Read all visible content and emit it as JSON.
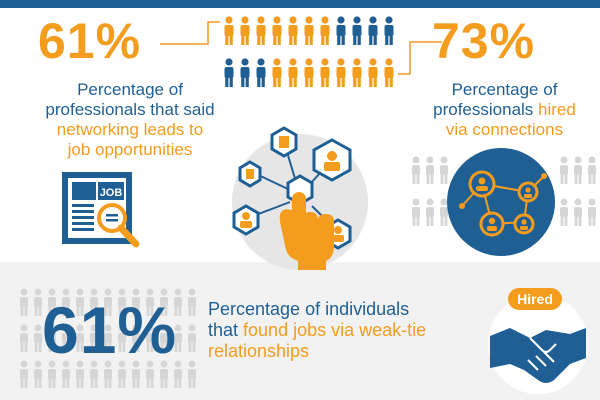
{
  "stats": {
    "networking": {
      "value": "61%",
      "line1": "Percentage of",
      "line2": "professionals that said",
      "line3_highlight": "networking leads to",
      "line4_highlight": "job opportunities"
    },
    "connections": {
      "value": "73%",
      "line1": "Percentage of",
      "line2_plain": "professionals ",
      "line2_highlight": "hired",
      "line3_highlight": "via connections"
    },
    "weak_tie": {
      "value": "61%",
      "line1": "Percentage of individuals",
      "line2_plain": "that ",
      "line2_highlight": "found jobs via weak-tie",
      "line3_highlight": "relationships"
    }
  },
  "job_icon": {
    "label": "JOB"
  },
  "hired_icon": {
    "label": "Hired"
  },
  "colors": {
    "brand_blue": "#1f5f94",
    "accent_orange": "#f39c1e",
    "light_gray": "#f2f2f2",
    "figure_gray": "#d6d6d6",
    "circle_gray": "#e6e6e6"
  },
  "icons": [
    "people-row-icon",
    "newspaper-job-icon",
    "hexagon-network-icon",
    "connections-network-icon",
    "handshake-icon"
  ]
}
